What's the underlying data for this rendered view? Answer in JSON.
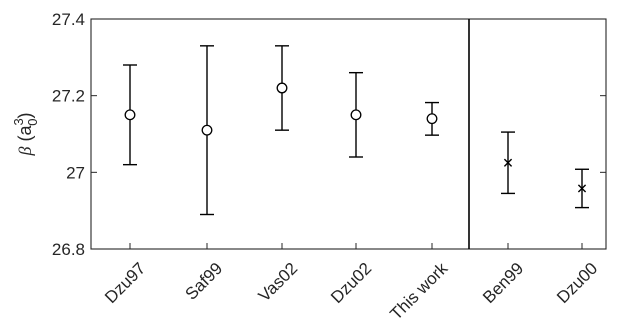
{
  "chart_data": {
    "type": "scatter",
    "title": "",
    "xlabel": "",
    "ylabel": "β (a₀³)",
    "ylabel_parts": {
      "symbol": "β",
      "open": " (a",
      "sub": "0",
      "sup": "3",
      "close": ")"
    },
    "ylim": [
      26.8,
      27.4
    ],
    "yticks": [
      "26.8",
      "27",
      "27.2",
      "27.4"
    ],
    "ytick_values": [
      26.8,
      27.0,
      27.2,
      27.4
    ],
    "grid": false,
    "legend": "none",
    "categories": [
      "Dzu97",
      "Saf99",
      "Vas02",
      "Dzu02",
      "This work",
      "Ben99",
      "Dzu00"
    ],
    "separator_after_category": "This work",
    "points": [
      {
        "label": "Dzu97",
        "value": 27.15,
        "lower": 27.02,
        "upper": 27.28,
        "marker": "circle"
      },
      {
        "label": "Saf99",
        "value": 27.11,
        "lower": 26.89,
        "upper": 27.33,
        "marker": "circle"
      },
      {
        "label": "Vas02",
        "value": 27.22,
        "lower": 27.11,
        "upper": 27.33,
        "marker": "circle"
      },
      {
        "label": "Dzu02",
        "value": 27.15,
        "lower": 27.04,
        "upper": 27.26,
        "marker": "circle"
      },
      {
        "label": "This work",
        "value": 27.14,
        "lower": 27.097,
        "upper": 27.182,
        "marker": "circle"
      },
      {
        "label": "Ben99",
        "value": 27.025,
        "lower": 26.945,
        "upper": 27.105,
        "marker": "x"
      },
      {
        "label": "Dzu00",
        "value": 26.958,
        "lower": 26.908,
        "upper": 27.008,
        "marker": "x"
      }
    ],
    "colors": {
      "marks": "#000000",
      "axes": "#262626"
    }
  }
}
